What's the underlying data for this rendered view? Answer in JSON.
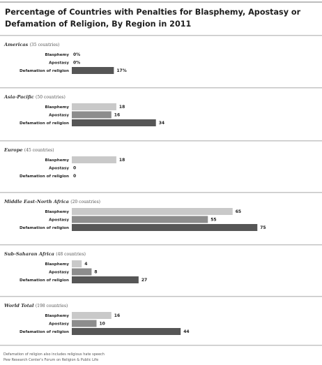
{
  "title": "Percentage of Countries with Penalties for Blasphemy, Apostasy or Defamation of Religion, By Region in 2011",
  "footer": {
    "note": "Defamation of religion also includes religious hate speech",
    "source": "Pew Research Center's Forum on Religion & Public Life"
  },
  "colors": {
    "blasphemy": "#c9c9c9",
    "apostasy": "#8d8d8d",
    "defamation": "#565656",
    "divider": "#c4c4c4"
  },
  "chart_data": {
    "type": "bar",
    "orientation": "horizontal",
    "categories": [
      "Blasphemy",
      "Apostasy",
      "Defamation of religion"
    ],
    "xlim": [
      0,
      100
    ],
    "grid": false,
    "legend": "none",
    "panels": [
      {
        "region": "Americas",
        "count_label": "(35 countries)",
        "values": [
          0,
          0,
          17
        ],
        "value_labels": [
          "0%",
          "0%",
          "17%"
        ]
      },
      {
        "region": "Asia-Pacific",
        "count_label": "(50 countries)",
        "values": [
          18,
          16,
          34
        ],
        "value_labels": [
          "18",
          "16",
          "34"
        ]
      },
      {
        "region": "Europe",
        "count_label": "(45 countries)",
        "values": [
          18,
          0,
          0
        ],
        "value_labels": [
          "18",
          "0",
          "0"
        ]
      },
      {
        "region": "Middle East-North Africa",
        "count_label": "(20 countries)",
        "values": [
          65,
          55,
          75
        ],
        "value_labels": [
          "65",
          "55",
          "75"
        ]
      },
      {
        "region": "Sub-Saharan Africa",
        "count_label": "(48 countries)",
        "values": [
          4,
          8,
          27
        ],
        "value_labels": [
          "4",
          "8",
          "27"
        ]
      },
      {
        "region": "World Total",
        "count_label": "(198 countries)",
        "values": [
          16,
          10,
          44
        ],
        "value_labels": [
          "16",
          "10",
          "44"
        ]
      }
    ]
  }
}
